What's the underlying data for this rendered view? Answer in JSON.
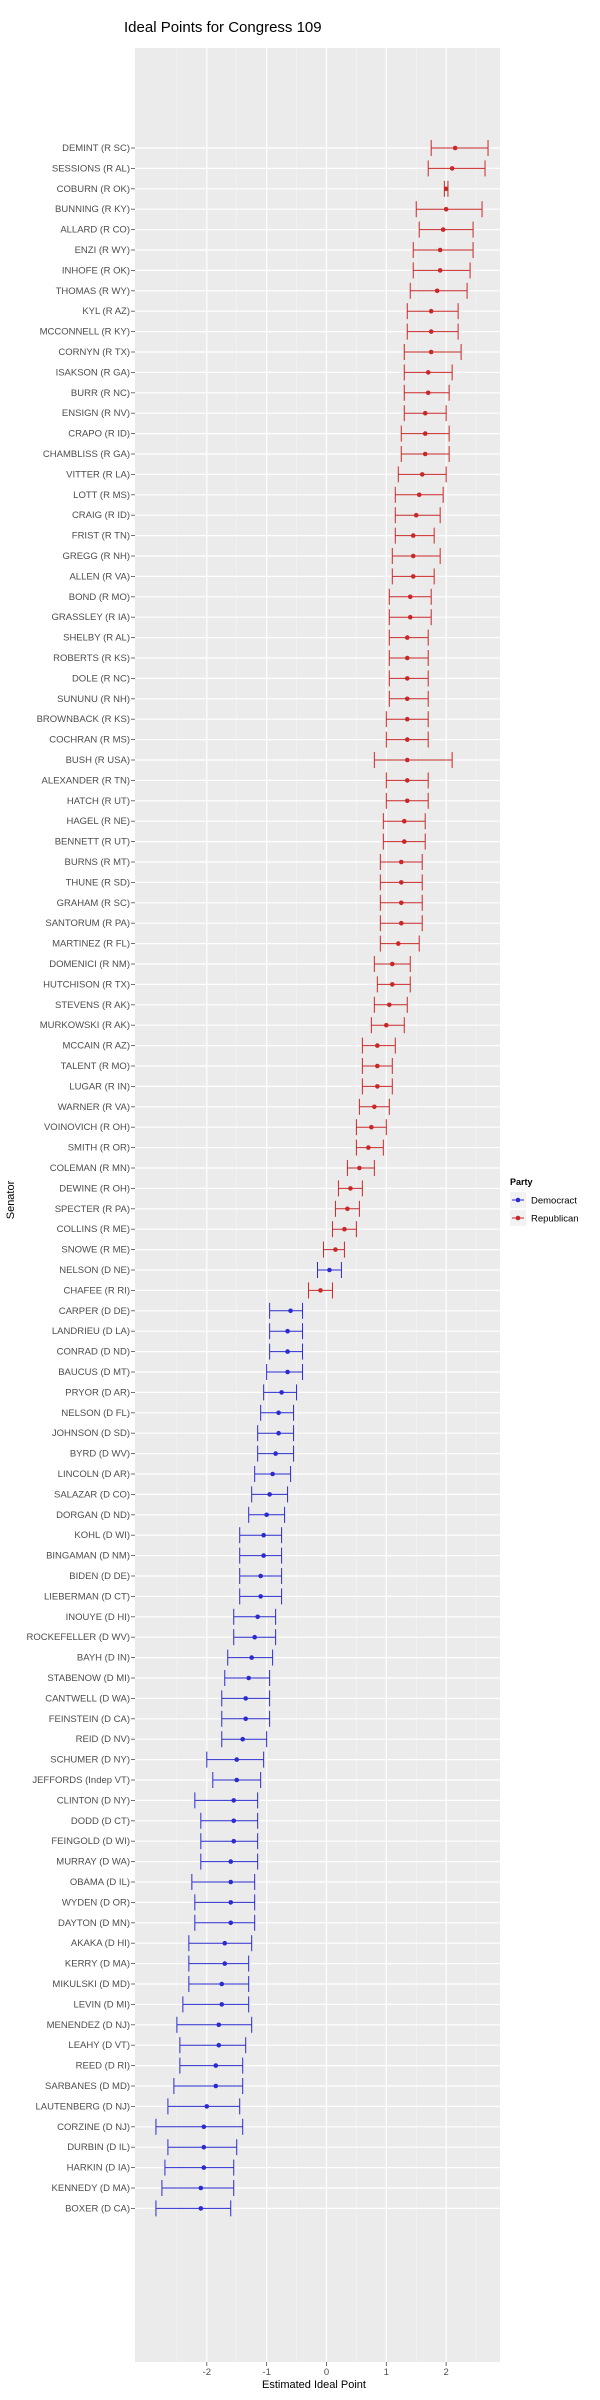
{
  "chart_data": {
    "type": "scatter",
    "title": "Ideal Points for Congress 109",
    "xlabel": "Estimated Ideal Point",
    "ylabel": "Senator",
    "xlim": [
      -3.2,
      2.9
    ],
    "x_ticks": [
      -2,
      -1,
      0,
      1,
      2
    ],
    "x_tick_labels": [
      "-2",
      "-1",
      "0",
      "1",
      "2"
    ],
    "grid": true,
    "legend": {
      "title": "Party",
      "placement": "right",
      "entries": [
        {
          "label": "Democract",
          "color": "#2b2bcf"
        },
        {
          "label": "Republican",
          "color": "#c82828"
        }
      ]
    },
    "colors": {
      "Democrat": "#2b2bcf",
      "Republican": "#c82828"
    },
    "points": [
      {
        "label": "DEMINT (R SC)",
        "party": "Republican",
        "x": 2.15,
        "lo": 1.75,
        "hi": 2.7
      },
      {
        "label": "SESSIONS (R AL)",
        "party": "Republican",
        "x": 2.1,
        "lo": 1.7,
        "hi": 2.65
      },
      {
        "label": "COBURN (R OK)",
        "party": "Republican",
        "x": 2.0,
        "lo": 1.97,
        "hi": 2.03
      },
      {
        "label": "BUNNING (R KY)",
        "party": "Republican",
        "x": 2.0,
        "lo": 1.5,
        "hi": 2.6
      },
      {
        "label": "ALLARD (R CO)",
        "party": "Republican",
        "x": 1.95,
        "lo": 1.55,
        "hi": 2.45
      },
      {
        "label": "ENZI (R WY)",
        "party": "Republican",
        "x": 1.9,
        "lo": 1.45,
        "hi": 2.45
      },
      {
        "label": "INHOFE (R OK)",
        "party": "Republican",
        "x": 1.9,
        "lo": 1.45,
        "hi": 2.4
      },
      {
        "label": "THOMAS (R WY)",
        "party": "Republican",
        "x": 1.85,
        "lo": 1.4,
        "hi": 2.35
      },
      {
        "label": "KYL (R AZ)",
        "party": "Republican",
        "x": 1.75,
        "lo": 1.35,
        "hi": 2.2
      },
      {
        "label": "MCCONNELL (R KY)",
        "party": "Republican",
        "x": 1.75,
        "lo": 1.35,
        "hi": 2.2
      },
      {
        "label": "CORNYN (R TX)",
        "party": "Republican",
        "x": 1.75,
        "lo": 1.3,
        "hi": 2.25
      },
      {
        "label": "ISAKSON (R GA)",
        "party": "Republican",
        "x": 1.7,
        "lo": 1.3,
        "hi": 2.1
      },
      {
        "label": "BURR (R NC)",
        "party": "Republican",
        "x": 1.7,
        "lo": 1.3,
        "hi": 2.05
      },
      {
        "label": "ENSIGN (R NV)",
        "party": "Republican",
        "x": 1.65,
        "lo": 1.3,
        "hi": 2.0
      },
      {
        "label": "CRAPO (R ID)",
        "party": "Republican",
        "x": 1.65,
        "lo": 1.25,
        "hi": 2.05
      },
      {
        "label": "CHAMBLISS (R GA)",
        "party": "Republican",
        "x": 1.65,
        "lo": 1.25,
        "hi": 2.05
      },
      {
        "label": "VITTER (R LA)",
        "party": "Republican",
        "x": 1.6,
        "lo": 1.2,
        "hi": 2.0
      },
      {
        "label": "LOTT (R MS)",
        "party": "Republican",
        "x": 1.55,
        "lo": 1.15,
        "hi": 1.95
      },
      {
        "label": "CRAIG (R ID)",
        "party": "Republican",
        "x": 1.5,
        "lo": 1.15,
        "hi": 1.9
      },
      {
        "label": "FRIST (R TN)",
        "party": "Republican",
        "x": 1.45,
        "lo": 1.15,
        "hi": 1.8
      },
      {
        "label": "GREGG (R NH)",
        "party": "Republican",
        "x": 1.45,
        "lo": 1.1,
        "hi": 1.9
      },
      {
        "label": "ALLEN (R VA)",
        "party": "Republican",
        "x": 1.45,
        "lo": 1.1,
        "hi": 1.8
      },
      {
        "label": "BOND (R MO)",
        "party": "Republican",
        "x": 1.4,
        "lo": 1.05,
        "hi": 1.75
      },
      {
        "label": "GRASSLEY (R IA)",
        "party": "Republican",
        "x": 1.4,
        "lo": 1.05,
        "hi": 1.75
      },
      {
        "label": "SHELBY (R AL)",
        "party": "Republican",
        "x": 1.35,
        "lo": 1.05,
        "hi": 1.7
      },
      {
        "label": "ROBERTS (R KS)",
        "party": "Republican",
        "x": 1.35,
        "lo": 1.05,
        "hi": 1.7
      },
      {
        "label": "DOLE (R NC)",
        "party": "Republican",
        "x": 1.35,
        "lo": 1.05,
        "hi": 1.7
      },
      {
        "label": "SUNUNU (R NH)",
        "party": "Republican",
        "x": 1.35,
        "lo": 1.05,
        "hi": 1.7
      },
      {
        "label": "BROWNBACK (R KS)",
        "party": "Republican",
        "x": 1.35,
        "lo": 1.0,
        "hi": 1.7
      },
      {
        "label": "COCHRAN (R MS)",
        "party": "Republican",
        "x": 1.35,
        "lo": 1.0,
        "hi": 1.7
      },
      {
        "label": "BUSH (R USA)",
        "party": "Republican",
        "x": 1.35,
        "lo": 0.8,
        "hi": 2.1
      },
      {
        "label": "ALEXANDER (R TN)",
        "party": "Republican",
        "x": 1.35,
        "lo": 1.0,
        "hi": 1.7
      },
      {
        "label": "HATCH (R UT)",
        "party": "Republican",
        "x": 1.35,
        "lo": 1.0,
        "hi": 1.7
      },
      {
        "label": "HAGEL (R NE)",
        "party": "Republican",
        "x": 1.3,
        "lo": 0.95,
        "hi": 1.65
      },
      {
        "label": "BENNETT (R UT)",
        "party": "Republican",
        "x": 1.3,
        "lo": 0.95,
        "hi": 1.65
      },
      {
        "label": "BURNS (R MT)",
        "party": "Republican",
        "x": 1.25,
        "lo": 0.9,
        "hi": 1.6
      },
      {
        "label": "THUNE (R SD)",
        "party": "Republican",
        "x": 1.25,
        "lo": 0.9,
        "hi": 1.6
      },
      {
        "label": "GRAHAM (R SC)",
        "party": "Republican",
        "x": 1.25,
        "lo": 0.9,
        "hi": 1.6
      },
      {
        "label": "SANTORUM (R PA)",
        "party": "Republican",
        "x": 1.25,
        "lo": 0.9,
        "hi": 1.6
      },
      {
        "label": "MARTINEZ (R FL)",
        "party": "Republican",
        "x": 1.2,
        "lo": 0.9,
        "hi": 1.55
      },
      {
        "label": "DOMENICI (R NM)",
        "party": "Republican",
        "x": 1.1,
        "lo": 0.8,
        "hi": 1.4
      },
      {
        "label": "HUTCHISON (R TX)",
        "party": "Republican",
        "x": 1.1,
        "lo": 0.85,
        "hi": 1.4
      },
      {
        "label": "STEVENS (R AK)",
        "party": "Republican",
        "x": 1.05,
        "lo": 0.8,
        "hi": 1.35
      },
      {
        "label": "MURKOWSKI (R AK)",
        "party": "Republican",
        "x": 1.0,
        "lo": 0.75,
        "hi": 1.3
      },
      {
        "label": "MCCAIN (R AZ)",
        "party": "Republican",
        "x": 0.85,
        "lo": 0.6,
        "hi": 1.15
      },
      {
        "label": "TALENT (R MO)",
        "party": "Republican",
        "x": 0.85,
        "lo": 0.6,
        "hi": 1.1
      },
      {
        "label": "LUGAR (R IN)",
        "party": "Republican",
        "x": 0.85,
        "lo": 0.6,
        "hi": 1.1
      },
      {
        "label": "WARNER (R VA)",
        "party": "Republican",
        "x": 0.8,
        "lo": 0.55,
        "hi": 1.05
      },
      {
        "label": "VOINOVICH (R OH)",
        "party": "Republican",
        "x": 0.75,
        "lo": 0.5,
        "hi": 1.0
      },
      {
        "label": "SMITH (R OR)",
        "party": "Republican",
        "x": 0.7,
        "lo": 0.5,
        "hi": 0.95
      },
      {
        "label": "COLEMAN (R MN)",
        "party": "Republican",
        "x": 0.55,
        "lo": 0.35,
        "hi": 0.8
      },
      {
        "label": "DEWINE (R OH)",
        "party": "Republican",
        "x": 0.4,
        "lo": 0.2,
        "hi": 0.6
      },
      {
        "label": "SPECTER (R PA)",
        "party": "Republican",
        "x": 0.35,
        "lo": 0.15,
        "hi": 0.55
      },
      {
        "label": "COLLINS (R ME)",
        "party": "Republican",
        "x": 0.3,
        "lo": 0.1,
        "hi": 0.5
      },
      {
        "label": "SNOWE (R ME)",
        "party": "Republican",
        "x": 0.15,
        "lo": -0.05,
        "hi": 0.3
      },
      {
        "label": "NELSON (D NE)",
        "party": "Democrat",
        "x": 0.05,
        "lo": -0.15,
        "hi": 0.25
      },
      {
        "label": "CHAFEE (R RI)",
        "party": "Republican",
        "x": -0.1,
        "lo": -0.3,
        "hi": 0.1
      },
      {
        "label": "CARPER (D DE)",
        "party": "Democrat",
        "x": -0.6,
        "lo": -0.95,
        "hi": -0.4
      },
      {
        "label": "LANDRIEU (D LA)",
        "party": "Democrat",
        "x": -0.65,
        "lo": -0.95,
        "hi": -0.4
      },
      {
        "label": "CONRAD (D ND)",
        "party": "Democrat",
        "x": -0.65,
        "lo": -0.95,
        "hi": -0.4
      },
      {
        "label": "BAUCUS (D MT)",
        "party": "Democrat",
        "x": -0.65,
        "lo": -1.0,
        "hi": -0.4
      },
      {
        "label": "PRYOR (D AR)",
        "party": "Democrat",
        "x": -0.75,
        "lo": -1.05,
        "hi": -0.5
      },
      {
        "label": "NELSON (D FL)",
        "party": "Democrat",
        "x": -0.8,
        "lo": -1.1,
        "hi": -0.55
      },
      {
        "label": "JOHNSON (D SD)",
        "party": "Democrat",
        "x": -0.8,
        "lo": -1.15,
        "hi": -0.55
      },
      {
        "label": "BYRD (D WV)",
        "party": "Democrat",
        "x": -0.85,
        "lo": -1.15,
        "hi": -0.55
      },
      {
        "label": "LINCOLN (D AR)",
        "party": "Democrat",
        "x": -0.9,
        "lo": -1.2,
        "hi": -0.6
      },
      {
        "label": "SALAZAR (D CO)",
        "party": "Democrat",
        "x": -0.95,
        "lo": -1.25,
        "hi": -0.65
      },
      {
        "label": "DORGAN (D ND)",
        "party": "Democrat",
        "x": -1.0,
        "lo": -1.3,
        "hi": -0.7
      },
      {
        "label": "KOHL (D WI)",
        "party": "Democrat",
        "x": -1.05,
        "lo": -1.45,
        "hi": -0.75
      },
      {
        "label": "BINGAMAN (D NM)",
        "party": "Democrat",
        "x": -1.05,
        "lo": -1.45,
        "hi": -0.75
      },
      {
        "label": "BIDEN (D DE)",
        "party": "Democrat",
        "x": -1.1,
        "lo": -1.45,
        "hi": -0.75
      },
      {
        "label": "LIEBERMAN (D CT)",
        "party": "Democrat",
        "x": -1.1,
        "lo": -1.45,
        "hi": -0.75
      },
      {
        "label": "INOUYE (D HI)",
        "party": "Democrat",
        "x": -1.15,
        "lo": -1.55,
        "hi": -0.85
      },
      {
        "label": "ROCKEFELLER (D WV)",
        "party": "Democrat",
        "x": -1.2,
        "lo": -1.55,
        "hi": -0.85
      },
      {
        "label": "BAYH (D IN)",
        "party": "Democrat",
        "x": -1.25,
        "lo": -1.65,
        "hi": -0.9
      },
      {
        "label": "STABENOW (D MI)",
        "party": "Democrat",
        "x": -1.3,
        "lo": -1.7,
        "hi": -0.95
      },
      {
        "label": "CANTWELL (D WA)",
        "party": "Democrat",
        "x": -1.35,
        "lo": -1.75,
        "hi": -0.95
      },
      {
        "label": "FEINSTEIN (D CA)",
        "party": "Democrat",
        "x": -1.35,
        "lo": -1.75,
        "hi": -0.95
      },
      {
        "label": "REID (D NV)",
        "party": "Democrat",
        "x": -1.4,
        "lo": -1.75,
        "hi": -1.0
      },
      {
        "label": "SCHUMER (D NY)",
        "party": "Democrat",
        "x": -1.5,
        "lo": -2.0,
        "hi": -1.05
      },
      {
        "label": "JEFFORDS (Indep VT)",
        "party": "Democrat",
        "x": -1.5,
        "lo": -1.9,
        "hi": -1.1
      },
      {
        "label": "CLINTON (D NY)",
        "party": "Democrat",
        "x": -1.55,
        "lo": -2.2,
        "hi": -1.15
      },
      {
        "label": "DODD (D CT)",
        "party": "Democrat",
        "x": -1.55,
        "lo": -2.1,
        "hi": -1.15
      },
      {
        "label": "FEINGOLD (D WI)",
        "party": "Democrat",
        "x": -1.55,
        "lo": -2.1,
        "hi": -1.15
      },
      {
        "label": "MURRAY (D WA)",
        "party": "Democrat",
        "x": -1.6,
        "lo": -2.1,
        "hi": -1.15
      },
      {
        "label": "OBAMA (D IL)",
        "party": "Democrat",
        "x": -1.6,
        "lo": -2.25,
        "hi": -1.2
      },
      {
        "label": "WYDEN (D OR)",
        "party": "Democrat",
        "x": -1.6,
        "lo": -2.2,
        "hi": -1.2
      },
      {
        "label": "DAYTON (D MN)",
        "party": "Democrat",
        "x": -1.6,
        "lo": -2.2,
        "hi": -1.2
      },
      {
        "label": "AKAKA (D HI)",
        "party": "Democrat",
        "x": -1.7,
        "lo": -2.3,
        "hi": -1.25
      },
      {
        "label": "KERRY (D MA)",
        "party": "Democrat",
        "x": -1.7,
        "lo": -2.3,
        "hi": -1.3
      },
      {
        "label": "MIKULSKI (D MD)",
        "party": "Democrat",
        "x": -1.75,
        "lo": -2.3,
        "hi": -1.3
      },
      {
        "label": "LEVIN (D MI)",
        "party": "Democrat",
        "x": -1.75,
        "lo": -2.4,
        "hi": -1.3
      },
      {
        "label": "MENENDEZ (D NJ)",
        "party": "Democrat",
        "x": -1.8,
        "lo": -2.5,
        "hi": -1.25
      },
      {
        "label": "LEAHY (D VT)",
        "party": "Democrat",
        "x": -1.8,
        "lo": -2.45,
        "hi": -1.35
      },
      {
        "label": "REED (D RI)",
        "party": "Democrat",
        "x": -1.85,
        "lo": -2.45,
        "hi": -1.4
      },
      {
        "label": "SARBANES (D MD)",
        "party": "Democrat",
        "x": -1.85,
        "lo": -2.55,
        "hi": -1.4
      },
      {
        "label": "LAUTENBERG (D NJ)",
        "party": "Democrat",
        "x": -2.0,
        "lo": -2.65,
        "hi": -1.45
      },
      {
        "label": "CORZINE (D NJ)",
        "party": "Democrat",
        "x": -2.05,
        "lo": -2.85,
        "hi": -1.4
      },
      {
        "label": "DURBIN (D IL)",
        "party": "Democrat",
        "x": -2.05,
        "lo": -2.65,
        "hi": -1.5
      },
      {
        "label": "HARKIN (D IA)",
        "party": "Democrat",
        "x": -2.05,
        "lo": -2.7,
        "hi": -1.55
      },
      {
        "label": "KENNEDY (D MA)",
        "party": "Democrat",
        "x": -2.1,
        "lo": -2.75,
        "hi": -1.55
      },
      {
        "label": "BOXER (D CA)",
        "party": "Democrat",
        "x": -2.1,
        "lo": -2.85,
        "hi": -1.6
      }
    ]
  }
}
